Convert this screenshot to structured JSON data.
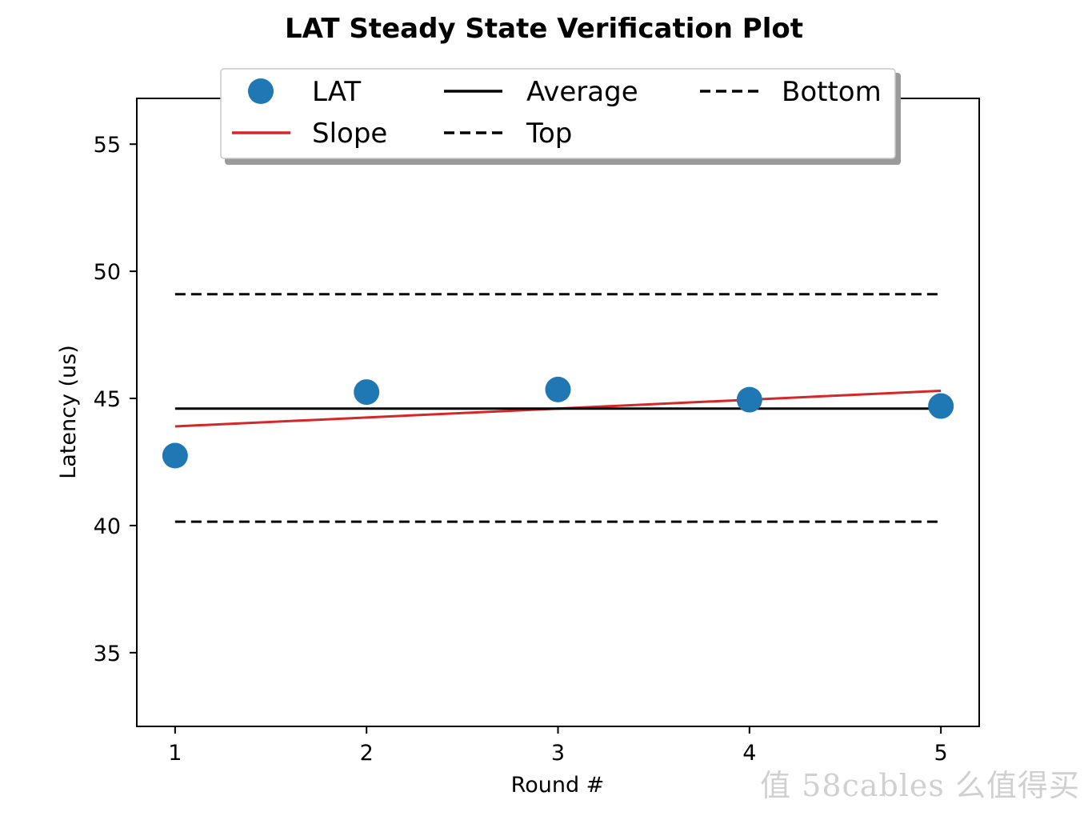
{
  "chart_data": {
    "type": "scatter",
    "title": "LAT Steady State Verification Plot",
    "xlabel": "Round #",
    "ylabel": "Latency (us)",
    "xlim": [
      0.8,
      5.2
    ],
    "ylim": [
      32.1,
      56.8
    ],
    "xticks": [
      1,
      2,
      3,
      4,
      5
    ],
    "yticks": [
      35,
      40,
      45,
      50,
      55
    ],
    "grid": false,
    "legend_position": "top-center",
    "series": [
      {
        "name": "LAT",
        "kind": "points",
        "color": "#1f77b4",
        "x": [
          1,
          2,
          3,
          4,
          5
        ],
        "y": [
          42.75,
          45.25,
          45.35,
          44.95,
          44.7
        ]
      },
      {
        "name": "Slope",
        "kind": "line",
        "style": "solid",
        "color": "#d62728",
        "x": [
          1,
          5
        ],
        "y": [
          43.9,
          45.3
        ]
      },
      {
        "name": "Average",
        "kind": "line",
        "style": "solid",
        "color": "#000000",
        "x": [
          1,
          5
        ],
        "y": [
          44.6,
          44.6
        ]
      },
      {
        "name": "Top",
        "kind": "line",
        "style": "dashed",
        "color": "#000000",
        "x": [
          1,
          5
        ],
        "y": [
          49.1,
          49.1
        ]
      },
      {
        "name": "Bottom",
        "kind": "line",
        "style": "dashed",
        "color": "#000000",
        "x": [
          1,
          5
        ],
        "y": [
          40.15,
          40.15
        ]
      }
    ],
    "legend_order": [
      "LAT",
      "Slope",
      "Average",
      "Top",
      "Bottom"
    ]
  },
  "watermark": "值 58cables 么值得买"
}
